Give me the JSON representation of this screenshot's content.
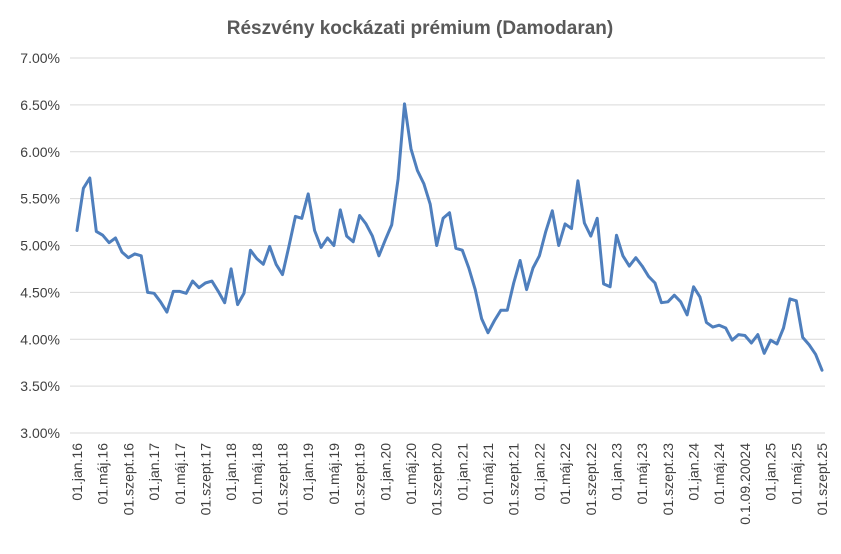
{
  "chart_data": {
    "type": "line",
    "title": "Részvény kockázati prémium (Damodaran)",
    "xlabel": "",
    "ylabel": "",
    "ylim": [
      3.0,
      7.0
    ],
    "ytick_labels": [
      "3.00%",
      "3.50%",
      "4.00%",
      "4.50%",
      "5.00%",
      "5.50%",
      "6.00%",
      "6.50%",
      "7.00%"
    ],
    "ytick_values": [
      3.0,
      3.5,
      4.0,
      4.5,
      5.0,
      5.5,
      6.0,
      6.5,
      7.0
    ],
    "grid": true,
    "legend": "none",
    "xtick_labels": [
      "01.jan.16",
      "01.máj.16",
      "01.szept.16",
      "01.jan.17",
      "01.máj.17",
      "01.szept.17",
      "01.jan.18",
      "01.máj.18",
      "01.szept.18",
      "01.jan.19",
      "01.máj.19",
      "01.szept.19",
      "01.jan.20",
      "01.máj.20",
      "01.szept.20",
      "01.jan.21",
      "01.máj.21",
      "01.szept.21",
      "01.jan.22",
      "01.máj.22",
      "01.szept.22",
      "01.jan.23",
      "01.máj.23",
      "01.szept.23",
      "01.jan.24",
      "01.máj.24",
      "0.1.09.20024",
      "01.jan.25",
      "01.máj.25",
      "01.szept.25"
    ],
    "series": [
      {
        "color": "#4f7fbd",
        "values": [
          5.16,
          5.61,
          5.72,
          5.15,
          5.11,
          5.03,
          5.08,
          4.93,
          4.87,
          4.91,
          4.89,
          4.5,
          4.49,
          4.4,
          4.29,
          4.51,
          4.51,
          4.49,
          4.62,
          4.55,
          4.6,
          4.62,
          4.51,
          4.39,
          4.75,
          4.37,
          4.49,
          4.95,
          4.86,
          4.8,
          4.99,
          4.8,
          4.69,
          4.99,
          5.31,
          5.29,
          5.55,
          5.16,
          4.98,
          5.08,
          5.0,
          5.38,
          5.1,
          5.04,
          5.32,
          5.23,
          5.1,
          4.89,
          5.06,
          5.22,
          5.71,
          6.51,
          6.03,
          5.8,
          5.66,
          5.44,
          5.0,
          5.29,
          5.35,
          4.97,
          4.95,
          4.76,
          4.53,
          4.22,
          4.07,
          4.2,
          4.31,
          4.31,
          4.6,
          4.84,
          4.53,
          4.76,
          4.89,
          5.15,
          5.37,
          5.0,
          5.23,
          5.18,
          5.69,
          5.24,
          5.1,
          5.29,
          4.59,
          4.56,
          5.11,
          4.89,
          4.78,
          4.87,
          4.78,
          4.67,
          4.6,
          4.39,
          4.4,
          4.47,
          4.4,
          4.26,
          4.56,
          4.45,
          4.18,
          4.13,
          4.15,
          4.12,
          3.99,
          4.05,
          4.04,
          3.96,
          4.05,
          3.85,
          3.99,
          3.95,
          4.12,
          4.43,
          4.41,
          4.02,
          3.94,
          3.84,
          3.67
        ]
      }
    ]
  }
}
